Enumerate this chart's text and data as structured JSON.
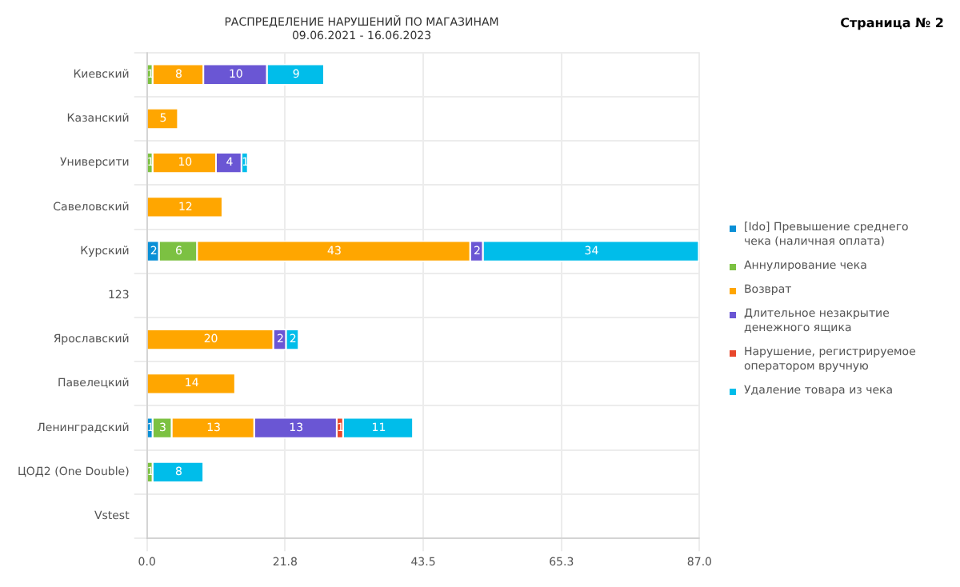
{
  "chart_data": {
    "type": "bar",
    "orientation": "horizontal",
    "stacked": true,
    "title": "РАСПРЕДЕЛЕНИЕ НАРУШЕНИЙ ПО МАГАЗИНАМ",
    "subtitle": "09.06.2021 - 16.06.2023",
    "annotations": [
      "Страница № 2"
    ],
    "categories": [
      "Киевский",
      "Казанский",
      "Университи",
      "Савеловский",
      "Курский",
      "123",
      "Ярославский",
      "Павелецкий",
      "Ленинградский",
      "ЦОД2 (One Double)",
      "Vstest"
    ],
    "series": [
      {
        "name": "[Ido] Превышение среднего чека (наличная оплата)",
        "color": "#0a8fd6",
        "values": [
          null,
          null,
          null,
          null,
          2,
          null,
          null,
          null,
          1,
          null,
          null
        ]
      },
      {
        "name": "Аннулирование чека",
        "color": "#7cc142",
        "values": [
          1,
          null,
          1,
          null,
          6,
          null,
          null,
          null,
          3,
          1,
          null
        ]
      },
      {
        "name": "Возврат",
        "color": "#ffa600",
        "values": [
          8,
          5,
          10,
          12,
          43,
          null,
          20,
          14,
          13,
          null,
          null
        ]
      },
      {
        "name": "Длительное незакрытие денежного ящика",
        "color": "#6a56d4",
        "values": [
          10,
          null,
          4,
          null,
          2,
          null,
          2,
          null,
          13,
          null,
          null
        ]
      },
      {
        "name": "Нарушение, регистрируемое оператором вручную",
        "color": "#e8472c",
        "values": [
          null,
          null,
          null,
          null,
          null,
          null,
          null,
          null,
          1,
          null,
          null
        ]
      },
      {
        "name": "Удаление товара из чека",
        "color": "#00bdea",
        "values": [
          9,
          null,
          1,
          null,
          34,
          null,
          2,
          null,
          11,
          8,
          null
        ]
      }
    ],
    "xlim": [
      0,
      87
    ],
    "xticks": [
      {
        "value": 0,
        "label": "0.0"
      },
      {
        "value": 21.75,
        "label": "21.8"
      },
      {
        "value": 43.5,
        "label": "43.5"
      },
      {
        "value": 65.25,
        "label": "65.3"
      },
      {
        "value": 87,
        "label": "87.0"
      }
    ],
    "grid": true,
    "legend": "right",
    "data_labels": true
  }
}
